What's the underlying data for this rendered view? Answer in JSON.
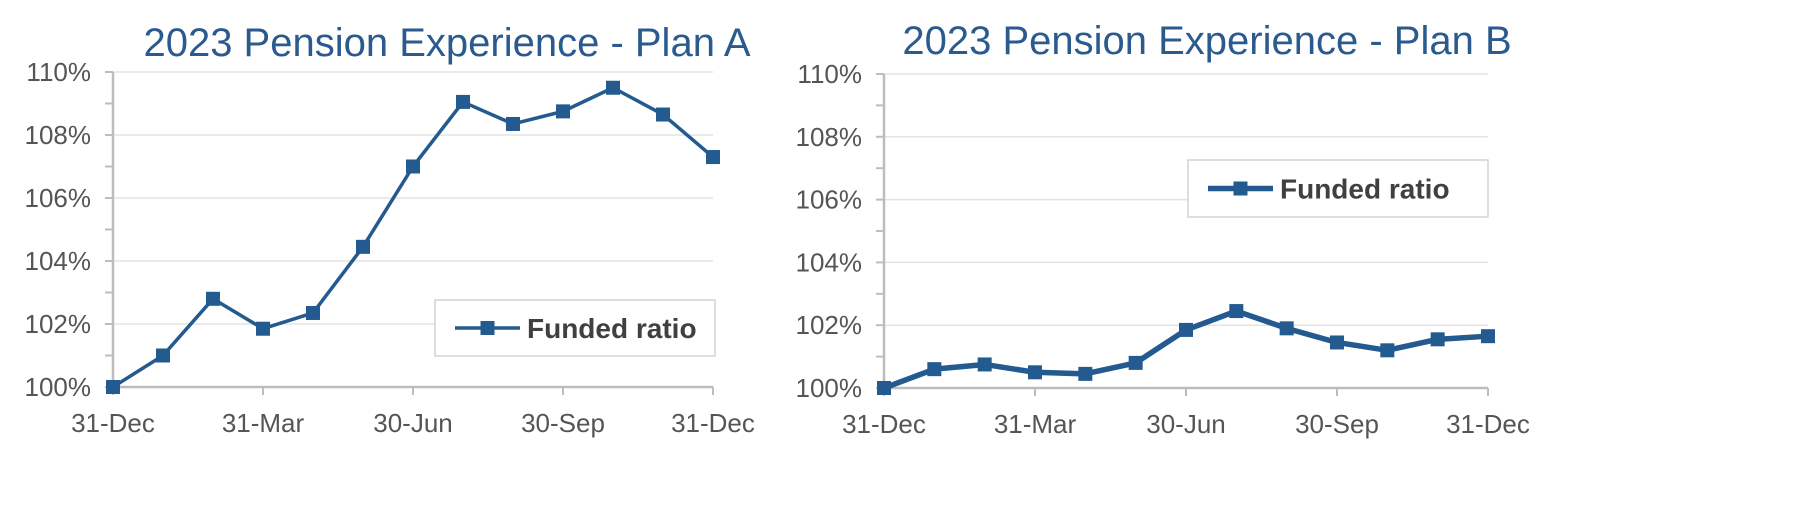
{
  "colors": {
    "series": "#235a8f",
    "grid": "#e3e3e3",
    "axis": "#bdbdbd",
    "title": "#2b5b8e",
    "tick_text": "#555555"
  },
  "chart_data": [
    {
      "type": "line",
      "title": "2023 Pension Experience - Plan A",
      "xlabel": "",
      "ylabel": "",
      "x_ticks": [
        "31-Dec",
        "31-Mar",
        "30-Jun",
        "30-Sep",
        "31-Dec"
      ],
      "y_ticks": [
        "100%",
        "102%",
        "104%",
        "106%",
        "108%",
        "110%"
      ],
      "ylim": [
        100,
        110
      ],
      "grid": true,
      "legend_position": "bottom-right",
      "series": [
        {
          "name": "Funded ratio",
          "values": [
            100.0,
            101.0,
            102.8,
            101.85,
            102.35,
            104.45,
            107.0,
            109.05,
            108.35,
            108.75,
            109.5,
            108.65,
            107.3
          ]
        }
      ]
    },
    {
      "type": "line",
      "title": "2023 Pension Experience - Plan B",
      "xlabel": "",
      "ylabel": "",
      "x_ticks": [
        "31-Dec",
        "31-Mar",
        "30-Jun",
        "30-Sep",
        "31-Dec"
      ],
      "y_ticks": [
        "100%",
        "102%",
        "104%",
        "106%",
        "108%",
        "110%"
      ],
      "ylim": [
        100,
        110
      ],
      "grid": true,
      "legend_position": "top-right",
      "series": [
        {
          "name": "Funded ratio",
          "values": [
            100.0,
            100.6,
            100.75,
            100.5,
            100.45,
            100.8,
            101.85,
            102.45,
            101.9,
            101.45,
            101.2,
            101.55,
            101.65
          ]
        }
      ]
    }
  ]
}
